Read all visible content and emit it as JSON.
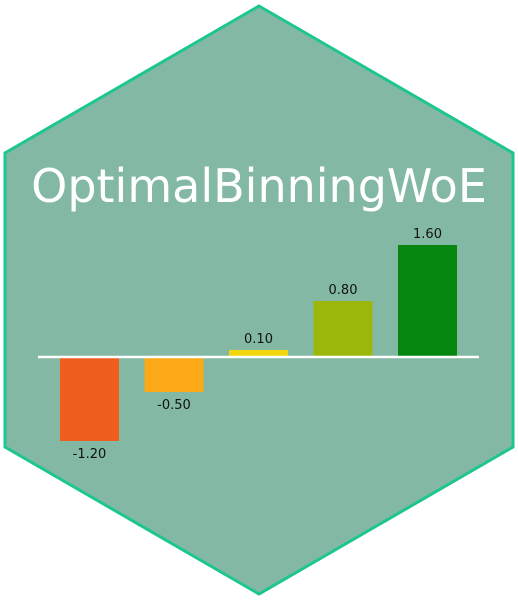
{
  "title": "OptimalBinningWoE",
  "colors": {
    "hex_fill": "#83b9a4",
    "hex_border": "#1dc690",
    "title": "#ffffff",
    "baseline": "#ffffff",
    "label": "#111111"
  },
  "chart_data": {
    "type": "bar",
    "values": [
      -1.2,
      -0.5,
      0.1,
      0.8,
      1.6
    ],
    "value_labels": [
      "-1.20",
      "-0.50",
      "0.10",
      "0.80",
      "1.60"
    ],
    "bar_colors": [
      "#f05e1e",
      "#fba917",
      "#f2d70e",
      "#9bb70b",
      "#05870f"
    ],
    "ylim": [
      -1.6,
      1.6
    ],
    "grid": false
  }
}
